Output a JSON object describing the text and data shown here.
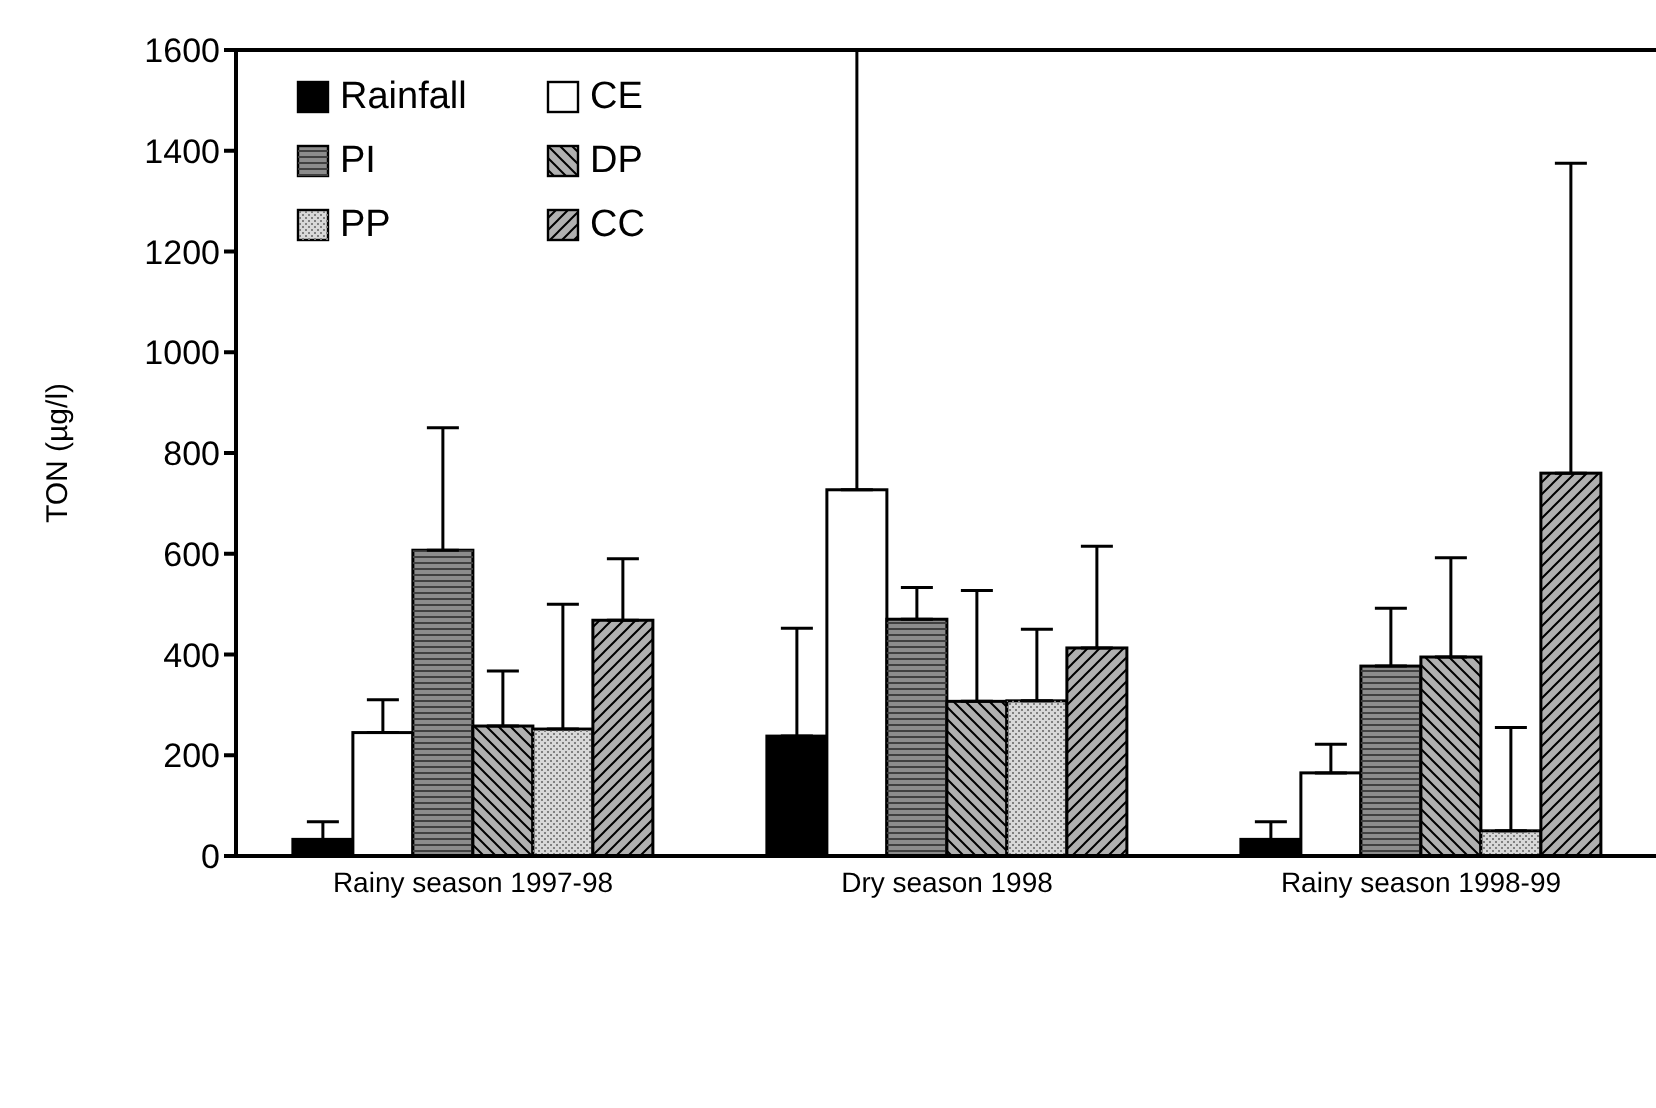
{
  "chart_data": {
    "type": "bar",
    "ylabel": "TON (µg/l)",
    "categories": [
      "Rainy season 1997-98",
      "Dry season 1998",
      "Rainy season 1998-99"
    ],
    "series": [
      {
        "name": "Rainfall",
        "color": "#000000",
        "values": [
          33,
          238,
          33
        ],
        "errors": [
          [
            33,
            68
          ],
          [
            238,
            452
          ],
          [
            33,
            68
          ]
        ]
      },
      {
        "name": "CE",
        "color": "#ffffff",
        "values": [
          245,
          727,
          165
        ],
        "errors": [
          [
            245,
            310
          ],
          [
            727,
            1600
          ],
          [
            165,
            222
          ]
        ]
      },
      {
        "name": "PI",
        "color": "#8c8c8c",
        "values": [
          607,
          470,
          377
        ],
        "errors": [
          [
            607,
            850
          ],
          [
            470,
            533
          ],
          [
            377,
            492
          ]
        ]
      },
      {
        "name": "DP",
        "color": "#b0b0b0",
        "values": [
          258,
          307,
          395
        ],
        "errors": [
          [
            258,
            367
          ],
          [
            307,
            527
          ],
          [
            395,
            592
          ]
        ]
      },
      {
        "name": "PP",
        "color": "#d8d8d8",
        "values": [
          252,
          308,
          50
        ],
        "errors": [
          [
            252,
            500
          ],
          [
            308,
            450
          ],
          [
            50,
            255
          ]
        ]
      },
      {
        "name": "CC",
        "color": "#b0b0b0",
        "values": [
          468,
          413,
          760
        ],
        "errors": [
          [
            468,
            590
          ],
          [
            413,
            615
          ],
          [
            760,
            1375
          ]
        ]
      }
    ],
    "ylim": [
      0,
      1600
    ],
    "yticks": [
      0,
      200,
      400,
      600,
      800,
      1000,
      1200,
      1400,
      1600
    ],
    "grid": false,
    "legend": "top left"
  }
}
